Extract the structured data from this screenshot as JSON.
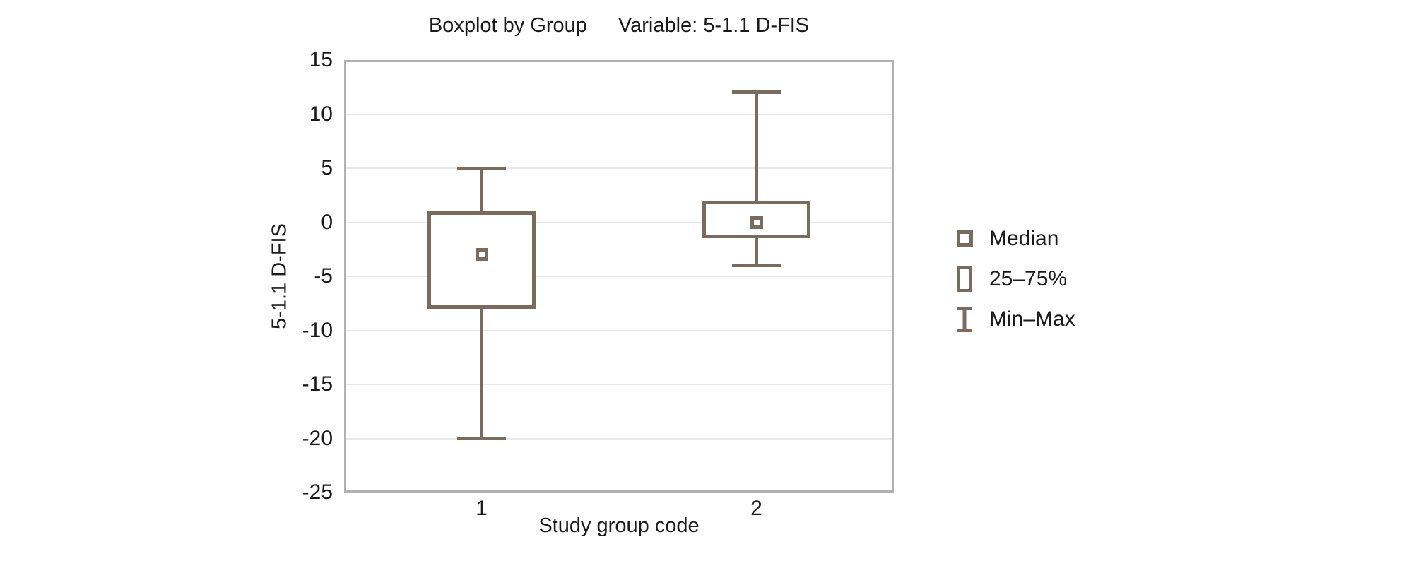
{
  "title": {
    "left": "Boxplot by Group",
    "right": "Variable: 5-1.1 D-FIS"
  },
  "colors": {
    "box": "#7a6b5e",
    "frame": "#b1b1b1",
    "grid": "#e9e9e9",
    "text": "#1a1a1a",
    "background": "#ffffff"
  },
  "chart_data": {
    "type": "boxplot",
    "title": "Boxplot by Group    Variable: 5-1.1 D-FIS",
    "xlabel": "Study group code",
    "ylabel": "5-1.1 D-FIS",
    "ylim": [
      -25,
      15
    ],
    "yticks": [
      15,
      10,
      5,
      0,
      -5,
      -10,
      -15,
      -20,
      -25
    ],
    "grid": "horizontal",
    "legend_position": "right-middle",
    "categories": [
      "1",
      "2"
    ],
    "series": [
      {
        "group": "1",
        "min": -20,
        "q1": -8,
        "median": -3,
        "q3": 1,
        "max": 5
      },
      {
        "group": "2",
        "min": -4,
        "q1": -1.5,
        "median": 0,
        "q3": 2,
        "max": 12
      }
    ]
  },
  "legend": {
    "items": [
      {
        "marker": "median-square",
        "label": "Median"
      },
      {
        "marker": "iqr-box",
        "label": "25–75%"
      },
      {
        "marker": "minmax-whisker",
        "label": "Min–Max"
      }
    ]
  }
}
